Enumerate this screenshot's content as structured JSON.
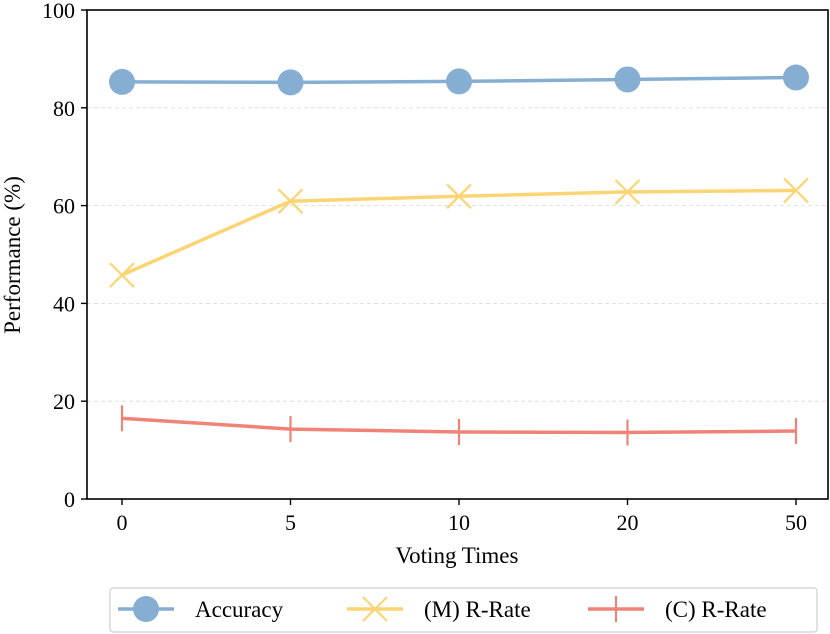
{
  "chart_data": {
    "type": "line",
    "categories": [
      "0",
      "5",
      "10",
      "20",
      "50"
    ],
    "xlabel": "Voting Times",
    "ylabel": "Performance (%)",
    "ylim": [
      0,
      100
    ],
    "yticks": [
      "0",
      "20",
      "40",
      "60",
      "80",
      "100"
    ],
    "grid": "horizontal dashed",
    "legend_position": "bottom",
    "series": [
      {
        "name": "Accuracy",
        "marker": "circle",
        "color": "#86AED3",
        "values": [
          85.3,
          85.2,
          85.4,
          85.8,
          86.2
        ]
      },
      {
        "name": "(M) R-Rate",
        "marker": "x",
        "color": "#FBD474",
        "values": [
          45.8,
          60.9,
          61.9,
          62.8,
          63.1
        ]
      },
      {
        "name": "(C) R-Rate",
        "marker": "vline",
        "color": "#F08377",
        "values": [
          16.5,
          14.3,
          13.7,
          13.6,
          13.9
        ]
      }
    ]
  }
}
